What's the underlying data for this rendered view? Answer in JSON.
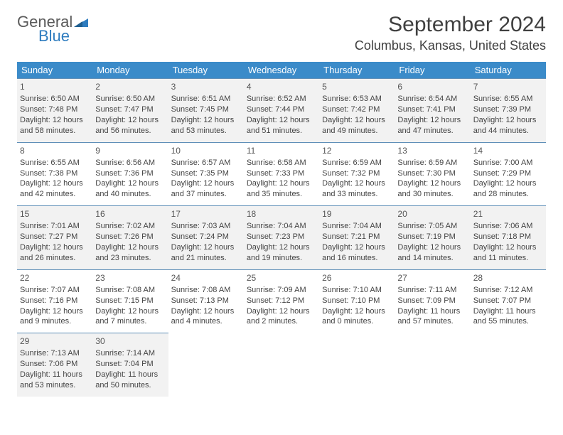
{
  "logo": {
    "part1": "General",
    "part2": "Blue"
  },
  "title": "September 2024",
  "location": "Columbus, Kansas, United States",
  "colors": {
    "header_bg": "#3b8bc9",
    "header_text": "#ffffff",
    "row_shade": "#f2f2f2",
    "border": "#5f8fb8",
    "logo_accent": "#2e7cbf"
  },
  "day_headers": [
    "Sunday",
    "Monday",
    "Tuesday",
    "Wednesday",
    "Thursday",
    "Friday",
    "Saturday"
  ],
  "weeks": [
    {
      "shaded": true,
      "days": [
        {
          "n": "1",
          "sr": "Sunrise: 6:50 AM",
          "ss": "Sunset: 7:48 PM",
          "d1": "Daylight: 12 hours",
          "d2": "and 58 minutes."
        },
        {
          "n": "2",
          "sr": "Sunrise: 6:50 AM",
          "ss": "Sunset: 7:47 PM",
          "d1": "Daylight: 12 hours",
          "d2": "and 56 minutes."
        },
        {
          "n": "3",
          "sr": "Sunrise: 6:51 AM",
          "ss": "Sunset: 7:45 PM",
          "d1": "Daylight: 12 hours",
          "d2": "and 53 minutes."
        },
        {
          "n": "4",
          "sr": "Sunrise: 6:52 AM",
          "ss": "Sunset: 7:44 PM",
          "d1": "Daylight: 12 hours",
          "d2": "and 51 minutes."
        },
        {
          "n": "5",
          "sr": "Sunrise: 6:53 AM",
          "ss": "Sunset: 7:42 PM",
          "d1": "Daylight: 12 hours",
          "d2": "and 49 minutes."
        },
        {
          "n": "6",
          "sr": "Sunrise: 6:54 AM",
          "ss": "Sunset: 7:41 PM",
          "d1": "Daylight: 12 hours",
          "d2": "and 47 minutes."
        },
        {
          "n": "7",
          "sr": "Sunrise: 6:55 AM",
          "ss": "Sunset: 7:39 PM",
          "d1": "Daylight: 12 hours",
          "d2": "and 44 minutes."
        }
      ]
    },
    {
      "shaded": false,
      "days": [
        {
          "n": "8",
          "sr": "Sunrise: 6:55 AM",
          "ss": "Sunset: 7:38 PM",
          "d1": "Daylight: 12 hours",
          "d2": "and 42 minutes."
        },
        {
          "n": "9",
          "sr": "Sunrise: 6:56 AM",
          "ss": "Sunset: 7:36 PM",
          "d1": "Daylight: 12 hours",
          "d2": "and 40 minutes."
        },
        {
          "n": "10",
          "sr": "Sunrise: 6:57 AM",
          "ss": "Sunset: 7:35 PM",
          "d1": "Daylight: 12 hours",
          "d2": "and 37 minutes."
        },
        {
          "n": "11",
          "sr": "Sunrise: 6:58 AM",
          "ss": "Sunset: 7:33 PM",
          "d1": "Daylight: 12 hours",
          "d2": "and 35 minutes."
        },
        {
          "n": "12",
          "sr": "Sunrise: 6:59 AM",
          "ss": "Sunset: 7:32 PM",
          "d1": "Daylight: 12 hours",
          "d2": "and 33 minutes."
        },
        {
          "n": "13",
          "sr": "Sunrise: 6:59 AM",
          "ss": "Sunset: 7:30 PM",
          "d1": "Daylight: 12 hours",
          "d2": "and 30 minutes."
        },
        {
          "n": "14",
          "sr": "Sunrise: 7:00 AM",
          "ss": "Sunset: 7:29 PM",
          "d1": "Daylight: 12 hours",
          "d2": "and 28 minutes."
        }
      ]
    },
    {
      "shaded": true,
      "days": [
        {
          "n": "15",
          "sr": "Sunrise: 7:01 AM",
          "ss": "Sunset: 7:27 PM",
          "d1": "Daylight: 12 hours",
          "d2": "and 26 minutes."
        },
        {
          "n": "16",
          "sr": "Sunrise: 7:02 AM",
          "ss": "Sunset: 7:26 PM",
          "d1": "Daylight: 12 hours",
          "d2": "and 23 minutes."
        },
        {
          "n": "17",
          "sr": "Sunrise: 7:03 AM",
          "ss": "Sunset: 7:24 PM",
          "d1": "Daylight: 12 hours",
          "d2": "and 21 minutes."
        },
        {
          "n": "18",
          "sr": "Sunrise: 7:04 AM",
          "ss": "Sunset: 7:23 PM",
          "d1": "Daylight: 12 hours",
          "d2": "and 19 minutes."
        },
        {
          "n": "19",
          "sr": "Sunrise: 7:04 AM",
          "ss": "Sunset: 7:21 PM",
          "d1": "Daylight: 12 hours",
          "d2": "and 16 minutes."
        },
        {
          "n": "20",
          "sr": "Sunrise: 7:05 AM",
          "ss": "Sunset: 7:19 PM",
          "d1": "Daylight: 12 hours",
          "d2": "and 14 minutes."
        },
        {
          "n": "21",
          "sr": "Sunrise: 7:06 AM",
          "ss": "Sunset: 7:18 PM",
          "d1": "Daylight: 12 hours",
          "d2": "and 11 minutes."
        }
      ]
    },
    {
      "shaded": false,
      "days": [
        {
          "n": "22",
          "sr": "Sunrise: 7:07 AM",
          "ss": "Sunset: 7:16 PM",
          "d1": "Daylight: 12 hours",
          "d2": "and 9 minutes."
        },
        {
          "n": "23",
          "sr": "Sunrise: 7:08 AM",
          "ss": "Sunset: 7:15 PM",
          "d1": "Daylight: 12 hours",
          "d2": "and 7 minutes."
        },
        {
          "n": "24",
          "sr": "Sunrise: 7:08 AM",
          "ss": "Sunset: 7:13 PM",
          "d1": "Daylight: 12 hours",
          "d2": "and 4 minutes."
        },
        {
          "n": "25",
          "sr": "Sunrise: 7:09 AM",
          "ss": "Sunset: 7:12 PM",
          "d1": "Daylight: 12 hours",
          "d2": "and 2 minutes."
        },
        {
          "n": "26",
          "sr": "Sunrise: 7:10 AM",
          "ss": "Sunset: 7:10 PM",
          "d1": "Daylight: 12 hours",
          "d2": "and 0 minutes."
        },
        {
          "n": "27",
          "sr": "Sunrise: 7:11 AM",
          "ss": "Sunset: 7:09 PM",
          "d1": "Daylight: 11 hours",
          "d2": "and 57 minutes."
        },
        {
          "n": "28",
          "sr": "Sunrise: 7:12 AM",
          "ss": "Sunset: 7:07 PM",
          "d1": "Daylight: 11 hours",
          "d2": "and 55 minutes."
        }
      ]
    },
    {
      "shaded": true,
      "days": [
        {
          "n": "29",
          "sr": "Sunrise: 7:13 AM",
          "ss": "Sunset: 7:06 PM",
          "d1": "Daylight: 11 hours",
          "d2": "and 53 minutes."
        },
        {
          "n": "30",
          "sr": "Sunrise: 7:14 AM",
          "ss": "Sunset: 7:04 PM",
          "d1": "Daylight: 11 hours",
          "d2": "and 50 minutes."
        },
        null,
        null,
        null,
        null,
        null
      ]
    }
  ]
}
